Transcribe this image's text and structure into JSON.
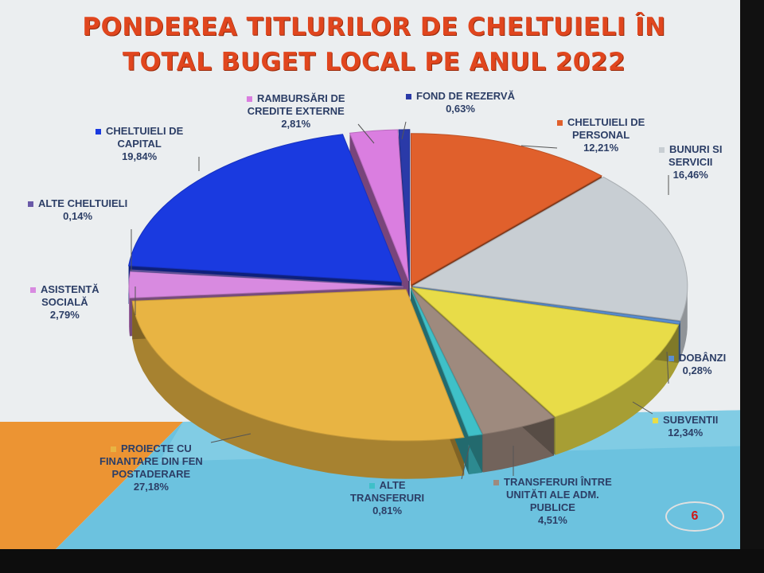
{
  "title": {
    "line1": "PONDEREA TITLURILOR DE CHELTUIELI ÎN",
    "line2": "TOTAL BUGET LOCAL PE ANUL 2022"
  },
  "page_number": "6",
  "colors": {
    "personal": "#e0602c",
    "bunuri": "#c8ced3",
    "dobanzi": "#5b8ed0",
    "subventii": "#e8dc48",
    "transferuri_intre": "#9e8a7e",
    "alte_transferuri": "#3fc0c8",
    "proiecte": "#e8b443",
    "asistenta": "#d88ae0",
    "alte_cheltuieli": "#6a5aa8",
    "capital": "#1a3ae0",
    "rambursari": "#da7ee0",
    "fond": "#2a3aa8"
  },
  "chart_data": {
    "type": "pie",
    "title": "PONDEREA TITLURILOR DE CHELTUIELI ÎN TOTAL BUGET LOCAL PE ANUL 2022",
    "unit": "%",
    "slices": [
      {
        "key": "personal",
        "name_lines": [
          "CHELTUIELI DE",
          "PERSONAL"
        ],
        "value": 12.21,
        "label": "12,21%"
      },
      {
        "key": "bunuri",
        "name_lines": [
          "BUNURI SI",
          "SERVICII"
        ],
        "value": 16.46,
        "label": "16,46%"
      },
      {
        "key": "dobanzi",
        "name_lines": [
          "DOBÂNZI"
        ],
        "value": 0.28,
        "label": "0,28%"
      },
      {
        "key": "subventii",
        "name_lines": [
          "SUBVENTII"
        ],
        "value": 12.34,
        "label": "12,34%"
      },
      {
        "key": "transferuri_intre",
        "name_lines": [
          "TRANSFERURI ÎNTRE",
          "UNITĂTI ALE ADM.",
          "PUBLICE"
        ],
        "value": 4.51,
        "label": "4,51%"
      },
      {
        "key": "alte_transferuri",
        "name_lines": [
          "ALTE",
          "TRANSFERURI"
        ],
        "value": 0.81,
        "label": "0,81%"
      },
      {
        "key": "proiecte",
        "name_lines": [
          "PROIECTE CU",
          "FINANTARE DIN FEN",
          "POSTADERARE"
        ],
        "value": 27.18,
        "label": "27,18%"
      },
      {
        "key": "asistenta",
        "name_lines": [
          "ASISTENTĂ",
          "SOCIALĂ"
        ],
        "value": 2.79,
        "label": "2,79%"
      },
      {
        "key": "alte_cheltuieli",
        "name_lines": [
          "ALTE CHELTUIELI"
        ],
        "value": 0.14,
        "label": "0,14%"
      },
      {
        "key": "capital",
        "name_lines": [
          "CHELTUIELI DE",
          "CAPITAL"
        ],
        "value": 19.84,
        "label": "19,84%"
      },
      {
        "key": "rambursari",
        "name_lines": [
          "RAMBURSĂRI DE",
          "CREDITE EXTERNE"
        ],
        "value": 2.81,
        "label": "2,81%"
      },
      {
        "key": "fond",
        "name_lines": [
          "FOND DE REZERVĂ"
        ],
        "value": 0.63,
        "label": "0,63%"
      }
    ]
  }
}
